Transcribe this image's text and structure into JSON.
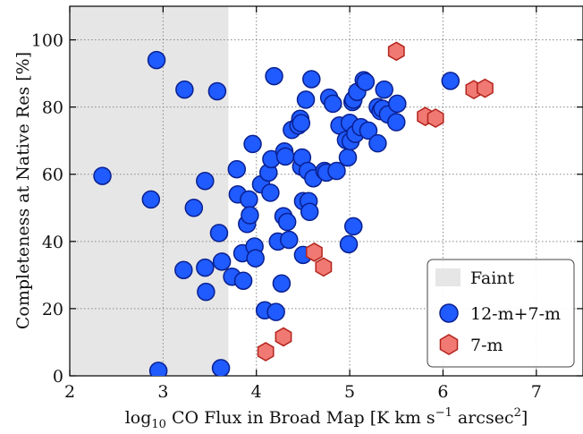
{
  "chart_data": {
    "type": "scatter",
    "x_axis": {
      "range": [
        2,
        7.5
      ],
      "ticks": [
        2,
        3,
        4,
        5,
        6,
        7
      ],
      "tick_labels": [
        "2",
        "3",
        "4",
        "5",
        "6",
        "7"
      ],
      "label": {
        "prefix": "log",
        "subscript": "10",
        "main": " CO Flux in Broad Map [K km s",
        "sup": "−1",
        "mid": " arcsec",
        "sup2": "2",
        "end": "]"
      }
    },
    "y_axis": {
      "range": [
        0,
        110
      ],
      "ticks": [
        0,
        20,
        40,
        60,
        80,
        100
      ],
      "tick_labels": [
        "0",
        "20",
        "40",
        "60",
        "80",
        "100"
      ],
      "label": "Completeness at Native Res [%]"
    },
    "grid": true,
    "faint_region": {
      "x_range": [
        2,
        3.7
      ],
      "color": "#e6e6e6"
    },
    "legend": {
      "placement": "bottom-right",
      "entries": [
        {
          "label": "Faint",
          "marker": "rect",
          "color": "#e6e6e6"
        },
        {
          "label": "12-m+7-m",
          "marker": "circle",
          "color": "#1f5bff"
        },
        {
          "label": "7-m",
          "marker": "hexagon",
          "color": "#f07a73"
        }
      ]
    },
    "series": [
      {
        "name": "12-m+7-m",
        "marker": "circle",
        "fill": "#1f5bff",
        "stroke": "#0a1f8f",
        "points": [
          [
            2.35,
            59.5
          ],
          [
            2.87,
            52.5
          ],
          [
            2.93,
            94
          ],
          [
            2.95,
            1.5
          ],
          [
            3.23,
            85.2
          ],
          [
            3.22,
            31.5
          ],
          [
            3.33,
            50
          ],
          [
            3.45,
            58
          ],
          [
            3.45,
            32.2
          ],
          [
            3.46,
            25
          ],
          [
            3.58,
            84.7
          ],
          [
            3.6,
            42.5
          ],
          [
            3.62,
            2.3
          ],
          [
            3.63,
            34
          ],
          [
            3.74,
            29.5
          ],
          [
            3.79,
            61.5
          ],
          [
            3.8,
            54
          ],
          [
            3.85,
            36.5
          ],
          [
            3.86,
            28.3
          ],
          [
            3.9,
            45.2
          ],
          [
            3.92,
            52.5
          ],
          [
            3.93,
            47.8
          ],
          [
            3.96,
            69
          ],
          [
            3.98,
            38.5
          ],
          [
            3.99,
            35
          ],
          [
            4.05,
            57
          ],
          [
            4.09,
            19.5
          ],
          [
            4.13,
            60.5
          ],
          [
            4.15,
            54.5
          ],
          [
            4.16,
            64.5
          ],
          [
            4.19,
            89.2
          ],
          [
            4.21,
            19
          ],
          [
            4.23,
            40
          ],
          [
            4.27,
            27.5
          ],
          [
            4.29,
            47.5
          ],
          [
            4.3,
            66.8
          ],
          [
            4.31,
            65.3
          ],
          [
            4.33,
            45.8
          ],
          [
            4.35,
            40.5
          ],
          [
            4.38,
            73.2
          ],
          [
            4.45,
            74.5
          ],
          [
            4.47,
            76.5
          ],
          [
            4.48,
            75.2
          ],
          [
            4.48,
            62.3
          ],
          [
            4.49,
            65
          ],
          [
            4.5,
            52
          ],
          [
            4.5,
            36
          ],
          [
            4.53,
            82.2
          ],
          [
            4.55,
            61
          ],
          [
            4.56,
            52
          ],
          [
            4.57,
            48.8
          ],
          [
            4.59,
            88.3
          ],
          [
            4.61,
            58.8
          ],
          [
            4.73,
            61
          ],
          [
            4.75,
            60.5
          ],
          [
            4.78,
            82.8
          ],
          [
            4.82,
            81
          ],
          [
            4.86,
            61
          ],
          [
            4.89,
            74.5
          ],
          [
            4.96,
            70.2
          ],
          [
            4.98,
            65
          ],
          [
            4.99,
            39.2
          ],
          [
            5.0,
            75.3
          ],
          [
            5.01,
            69.8
          ],
          [
            5.03,
            81.5
          ],
          [
            5.04,
            82.2
          ],
          [
            5.04,
            44.5
          ],
          [
            5.06,
            72
          ],
          [
            5.08,
            84.5
          ],
          [
            5.12,
            74
          ],
          [
            5.15,
            88
          ],
          [
            5.17,
            87.5
          ],
          [
            5.2,
            73
          ],
          [
            5.3,
            80
          ],
          [
            5.3,
            69.2
          ],
          [
            5.33,
            78.8
          ],
          [
            5.35,
            79.5
          ],
          [
            5.37,
            85.2
          ],
          [
            5.41,
            77.8
          ],
          [
            5.5,
            75.5
          ],
          [
            5.51,
            81
          ],
          [
            6.08,
            87.8
          ]
        ]
      },
      {
        "name": "7-m",
        "marker": "hexagon",
        "fill": "#f07a73",
        "stroke": "#b3231c",
        "points": [
          [
            4.1,
            7.2
          ],
          [
            4.29,
            11.6
          ],
          [
            4.62,
            36.8
          ],
          [
            4.72,
            32.4
          ],
          [
            5.5,
            96.6
          ],
          [
            5.81,
            77.2
          ],
          [
            5.92,
            76.7
          ],
          [
            6.33,
            85.2
          ],
          [
            6.45,
            85.6
          ]
        ]
      }
    ]
  }
}
